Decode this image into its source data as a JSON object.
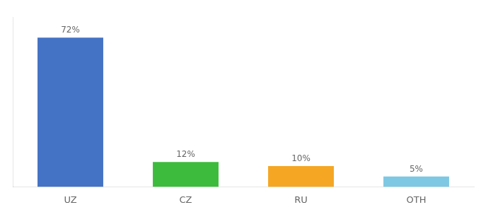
{
  "chart_data": {
    "type": "bar",
    "categories": [
      "UZ",
      "CZ",
      "RU",
      "OTH"
    ],
    "values": [
      72,
      12,
      10,
      5
    ],
    "value_labels": [
      "72%",
      "12%",
      "10%",
      "5%"
    ],
    "colors": [
      "#4472c4",
      "#3dbb3d",
      "#f5a623",
      "#7ec8e3"
    ],
    "ylim": [
      0,
      82
    ],
    "grid": false,
    "data_labels": true,
    "tick_labels": "x"
  }
}
